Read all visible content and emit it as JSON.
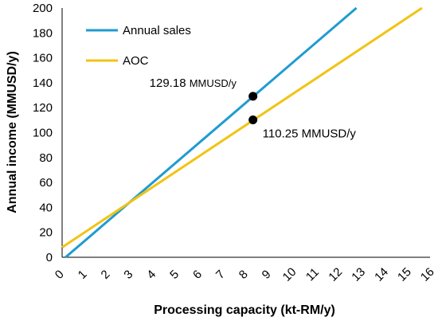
{
  "chart_data": {
    "type": "line",
    "xlabel": "Processing capacity (kt-RM/y)",
    "ylabel": "Annual income (MMUSD/y)",
    "xlim": [
      0,
      16
    ],
    "ylim": [
      0,
      200
    ],
    "xticks": [
      "0",
      "1",
      "2",
      "3",
      "4",
      "5",
      "6",
      "7",
      "8",
      "9",
      "10",
      "11",
      "12",
      "13",
      "14",
      "15",
      "16"
    ],
    "yticks": [
      "0",
      "20",
      "40",
      "60",
      "80",
      "100",
      "120",
      "140",
      "160",
      "180",
      "200"
    ],
    "grid": false,
    "legend_position": "top-left",
    "series": [
      {
        "name": "Annual sales",
        "color": "#1f9bd1",
        "x": [
          0.15,
          12.8
        ],
        "y": [
          0,
          200
        ]
      },
      {
        "name": "AOC",
        "color": "#f2c313",
        "x": [
          0,
          15.65
        ],
        "y": [
          8,
          200
        ]
      }
    ],
    "points": [
      {
        "x": 8.3,
        "y": 129.18,
        "value": "129.18",
        "unit": "MMUSD/y"
      },
      {
        "x": 8.3,
        "y": 110.25,
        "value": "110.25",
        "unit": "MMUSD/y"
      }
    ]
  }
}
